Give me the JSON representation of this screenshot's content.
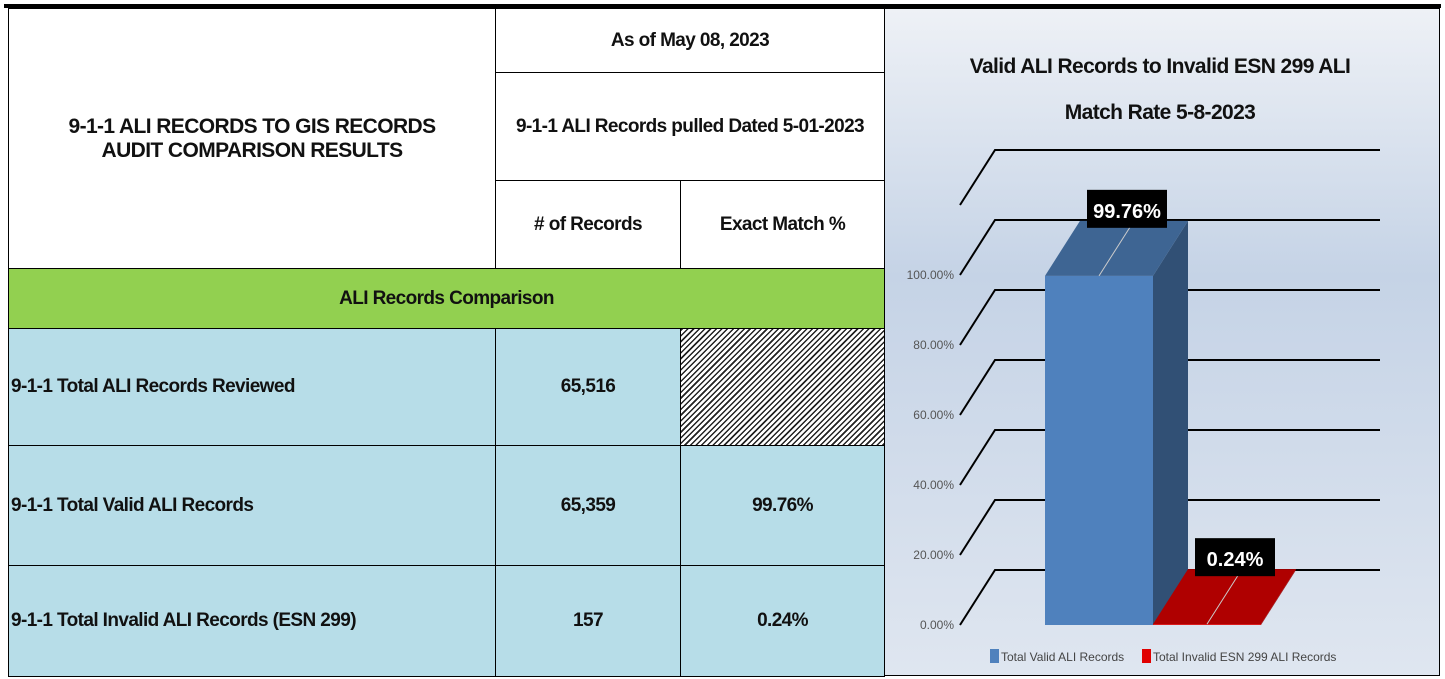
{
  "table": {
    "title_lines": [
      "9-1-1 ALI RECORDS TO GIS RECORDS",
      "AUDIT COMPARISON RESULTS"
    ],
    "as_of": "As of May 08, 2023",
    "pulled": "9-1-1 ALI Records pulled Dated 5-01-2023",
    "columns": [
      "# of Records",
      "Exact Match %"
    ],
    "section": "ALI Records Comparison",
    "rows": [
      {
        "label": "9-1-1 Total ALI Records Reviewed",
        "records": "65,516"
      },
      {
        "label": "9-1-1 Total Valid ALI Records",
        "records": "65,359",
        "match": "99.76%"
      },
      {
        "label": "9-1-1 Total Invalid ALI Records (ESN 299)",
        "records": "157",
        "match": "0.24%"
      }
    ]
  },
  "chart_data": {
    "type": "bar3d",
    "title": "Valid ALI Records to Invalid ESN 299 ALI Match Rate 5-8-2023",
    "categories": [
      null
    ],
    "series": [
      {
        "name": "Total Valid ALI Records",
        "color": "#4f81bd",
        "values": [
          99.76
        ],
        "value_labels": [
          "99.76%"
        ]
      },
      {
        "name": "Total Invalid ESN 299 ALI Records",
        "color": "#e00000",
        "values": [
          0.24
        ],
        "value_labels": [
          "0.24%"
        ]
      }
    ],
    "ylim": [
      0,
      120
    ],
    "yticks": [
      {
        "value": 0,
        "label": "0.00%"
      },
      {
        "value": 20,
        "label": "20.00%"
      },
      {
        "value": 40,
        "label": "40.00%"
      },
      {
        "value": 60,
        "label": "60.00%"
      },
      {
        "value": 80,
        "label": "80.00%"
      },
      {
        "value": 100,
        "label": "100.00%"
      }
    ],
    "grid": true,
    "legend": "bottom"
  }
}
